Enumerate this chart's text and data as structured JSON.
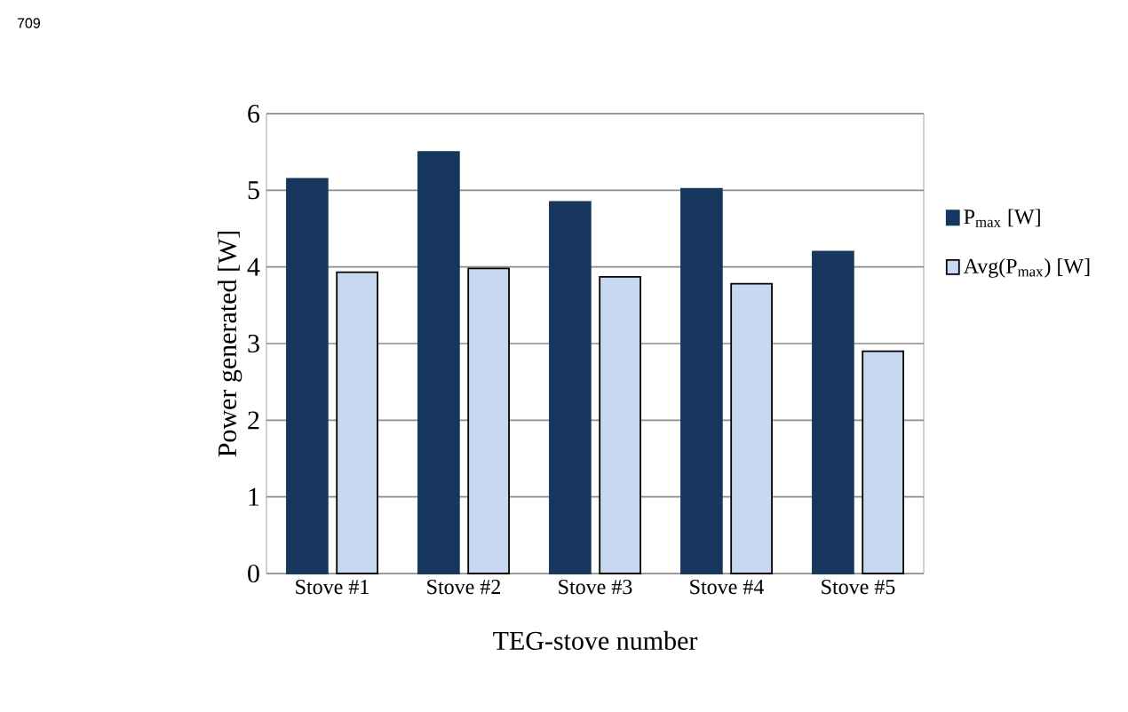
{
  "chart_data": {
    "type": "bar",
    "xlabel": "TEG-stove number",
    "ylabel": "Power generated [W]",
    "categories": [
      "Stove #1",
      "Stove #2",
      "Stove #3",
      "Stove #4",
      "Stove #5"
    ],
    "series": [
      {
        "name": "P$_{max}$ [W]",
        "color": "#17375e",
        "values": [
          5.15,
          5.5,
          4.85,
          5.02,
          4.2
        ]
      },
      {
        "name": "Avg(P$_{max}$) [W]",
        "color": "#c6d9f0",
        "values": [
          3.93,
          3.98,
          3.87,
          3.78,
          2.9
        ]
      }
    ],
    "ylim": [
      0,
      6
    ],
    "yticks": [
      0,
      1,
      2,
      3,
      4,
      5,
      6
    ],
    "grid": "y",
    "legend": "right",
    "annotations": [
      "709"
    ]
  }
}
